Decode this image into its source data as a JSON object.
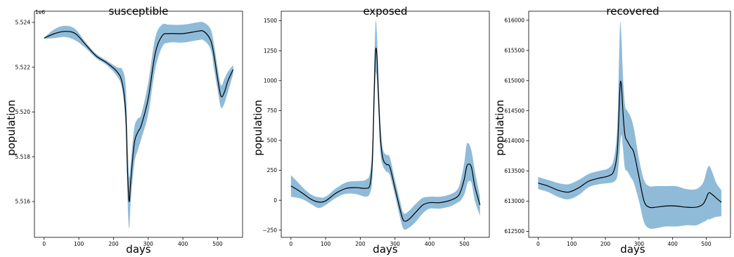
{
  "chart_data": [
    {
      "type": "line",
      "title": "susceptible",
      "xlabel": "days",
      "ylabel": "population",
      "y_offset_text": "1e6",
      "xlim": [
        -28,
        572
      ],
      "ylim": [
        5514400,
        5524500
      ],
      "xticks": [
        0,
        100,
        200,
        300,
        400,
        500
      ],
      "yticks": [
        5516000,
        5518000,
        5520000,
        5522000,
        5524000
      ],
      "ytick_labels": [
        "5.516",
        "5.518",
        "5.520",
        "5.522",
        "5.524"
      ],
      "grid": false,
      "series": [
        {
          "role": "mean",
          "color": "#000000",
          "x": [
            0,
            30,
            60,
            90,
            120,
            150,
            180,
            210,
            225,
            235,
            240,
            245,
            250,
            260,
            270,
            280,
            300,
            320,
            340,
            360,
            400,
            440,
            460,
            480,
            490,
            500,
            510,
            520,
            530,
            545
          ],
          "y": [
            5523300,
            5523500,
            5523600,
            5523500,
            5523000,
            5522500,
            5522200,
            5521800,
            5521300,
            5520000,
            5517500,
            5516000,
            5517000,
            5518600,
            5519100,
            5519400,
            5520600,
            5522600,
            5523400,
            5523500,
            5523500,
            5523600,
            5523600,
            5523200,
            5522500,
            5521500,
            5520700,
            5520900,
            5521400,
            5521900
          ]
        },
        {
          "role": "band",
          "color": "#1f77b4",
          "opacity": 0.5,
          "x": [
            0,
            30,
            60,
            90,
            120,
            150,
            180,
            210,
            225,
            235,
            240,
            245,
            250,
            260,
            270,
            280,
            300,
            320,
            340,
            360,
            400,
            440,
            460,
            480,
            490,
            500,
            510,
            520,
            530,
            545
          ],
          "upper": [
            5523330,
            5523700,
            5523850,
            5523700,
            5523100,
            5522600,
            5522300,
            5522000,
            5521900,
            5521200,
            5519000,
            5517100,
            5517800,
            5519300,
            5519700,
            5519900,
            5521300,
            5523300,
            5523900,
            5523900,
            5523900,
            5524000,
            5524000,
            5523700,
            5523000,
            5522000,
            5521200,
            5521500,
            5521800,
            5522100
          ],
          "lower": [
            5523270,
            5523300,
            5523350,
            5523200,
            5522850,
            5522400,
            5522100,
            5521600,
            5521000,
            5519300,
            5516300,
            5514800,
            5516100,
            5517700,
            5518300,
            5518800,
            5519900,
            5521900,
            5522900,
            5523100,
            5523100,
            5523200,
            5523200,
            5522800,
            5521900,
            5521000,
            5520200,
            5520400,
            5520900,
            5521700
          ]
        }
      ]
    },
    {
      "type": "line",
      "title": "exposed",
      "xlabel": "days",
      "ylabel": "population",
      "xlim": [
        -28,
        572
      ],
      "ylim": [
        -310,
        1580
      ],
      "xticks": [
        0,
        100,
        200,
        300,
        400,
        500
      ],
      "yticks": [
        -250,
        0,
        250,
        500,
        750,
        1000,
        1250,
        1500
      ],
      "ytick_labels": [
        "−250",
        "0",
        "250",
        "500",
        "750",
        "1000",
        "1250",
        "1500"
      ],
      "grid": false,
      "series": [
        {
          "role": "mean",
          "color": "#000000",
          "x": [
            0,
            20,
            40,
            60,
            80,
            100,
            130,
            160,
            190,
            215,
            228,
            235,
            240,
            244,
            248,
            252,
            258,
            265,
            275,
            285,
            300,
            315,
            325,
            340,
            360,
            380,
            400,
            430,
            460,
            480,
            490,
            500,
            505,
            510,
            520,
            530,
            545
          ],
          "y": [
            120,
            85,
            45,
            5,
            -15,
            -5,
            60,
            100,
            105,
            100,
            130,
            350,
            900,
            1250,
            1200,
            900,
            520,
            350,
            300,
            280,
            100,
            -80,
            -170,
            -160,
            -100,
            -40,
            -20,
            -20,
            0,
            30,
            80,
            180,
            260,
            300,
            280,
            120,
            -40
          ]
        },
        {
          "role": "band",
          "color": "#1f77b4",
          "opacity": 0.5,
          "x": [
            0,
            20,
            40,
            60,
            80,
            100,
            130,
            160,
            190,
            215,
            228,
            235,
            240,
            244,
            248,
            252,
            258,
            265,
            275,
            285,
            300,
            315,
            325,
            340,
            360,
            380,
            400,
            430,
            460,
            480,
            490,
            500,
            505,
            510,
            520,
            530,
            545
          ],
          "upper": [
            210,
            150,
            90,
            45,
            25,
            30,
            100,
            150,
            160,
            170,
            230,
            500,
            1100,
            1490,
            1380,
            1050,
            650,
            430,
            380,
            360,
            170,
            -10,
            -110,
            -90,
            -30,
            20,
            30,
            30,
            50,
            90,
            170,
            320,
            440,
            480,
            420,
            250,
            30
          ],
          "lower": [
            30,
            20,
            0,
            -35,
            -65,
            -40,
            20,
            55,
            50,
            30,
            60,
            200,
            700,
            1050,
            1000,
            760,
            400,
            290,
            240,
            210,
            40,
            -150,
            -240,
            -230,
            -180,
            -110,
            -70,
            -70,
            -50,
            -20,
            0,
            50,
            100,
            150,
            150,
            0,
            -130
          ]
        }
      ]
    },
    {
      "type": "line",
      "title": "recovered",
      "xlabel": "days",
      "ylabel": "population",
      "xlim": [
        -28,
        572
      ],
      "ylim": [
        612400,
        616150
      ],
      "xticks": [
        0,
        100,
        200,
        300,
        400,
        500
      ],
      "yticks": [
        612500,
        613000,
        613500,
        614000,
        614500,
        615000,
        615500,
        616000
      ],
      "ytick_labels": [
        "612500",
        "613000",
        "613500",
        "614000",
        "614500",
        "615000",
        "615500",
        "616000"
      ],
      "grid": false,
      "series": [
        {
          "role": "mean",
          "color": "#000000",
          "x": [
            0,
            30,
            60,
            90,
            120,
            150,
            180,
            210,
            225,
            235,
            240,
            244,
            248,
            252,
            258,
            265,
            275,
            285,
            300,
            315,
            330,
            350,
            380,
            410,
            440,
            470,
            490,
            500,
            505,
            510,
            520,
            530,
            545
          ],
          "y": [
            613300,
            613250,
            613180,
            613150,
            613220,
            613330,
            613380,
            613420,
            613500,
            613800,
            614400,
            614950,
            614900,
            614500,
            614100,
            614000,
            613900,
            613800,
            613400,
            613000,
            612900,
            612900,
            612920,
            612920,
            612900,
            612900,
            612950,
            613050,
            613120,
            613140,
            613100,
            613050,
            612980
          ]
        },
        {
          "role": "band",
          "color": "#1f77b4",
          "opacity": 0.5,
          "x": [
            0,
            30,
            60,
            90,
            120,
            150,
            180,
            210,
            225,
            235,
            240,
            244,
            248,
            252,
            258,
            265,
            275,
            285,
            300,
            315,
            330,
            350,
            380,
            410,
            440,
            470,
            490,
            500,
            505,
            510,
            520,
            530,
            545
          ],
          "upper": [
            613400,
            613350,
            613300,
            613280,
            613350,
            613450,
            613500,
            613550,
            613700,
            614200,
            615200,
            615950,
            615700,
            615100,
            614600,
            614500,
            614400,
            614200,
            613700,
            613350,
            613250,
            613250,
            613250,
            613250,
            613200,
            613200,
            613300,
            613480,
            613560,
            613580,
            613450,
            613300,
            613180
          ],
          "lower": [
            613200,
            613150,
            613070,
            613030,
            613100,
            613230,
            613280,
            613300,
            613320,
            613400,
            613650,
            613950,
            614100,
            613900,
            613550,
            613500,
            613400,
            613300,
            613000,
            612650,
            612550,
            612550,
            612580,
            612580,
            612600,
            612600,
            612650,
            612680,
            612700,
            612700,
            612720,
            612740,
            612750
          ]
        }
      ]
    }
  ]
}
